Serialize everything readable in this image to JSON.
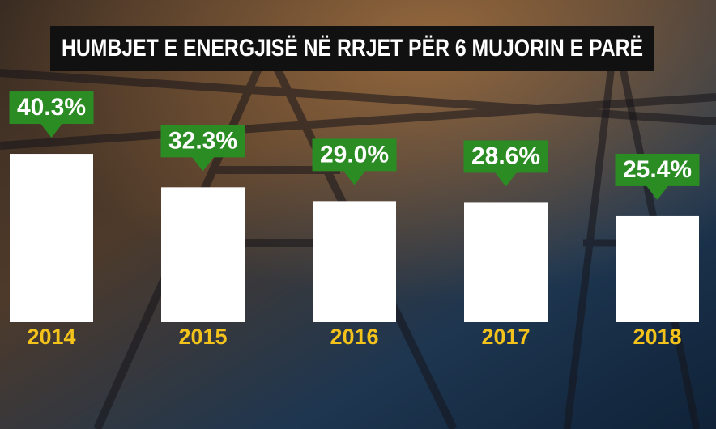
{
  "chart_data": {
    "type": "bar",
    "title": "HUMBJET E ENERGJISË NË RRJET PËR 6 MUJORIN E PARË",
    "categories": [
      "2014",
      "2015",
      "2016",
      "2017",
      "2018"
    ],
    "values": [
      40.3,
      32.3,
      29.0,
      28.6,
      25.4
    ],
    "value_labels": [
      "40.3%",
      "32.3%",
      "29.0%",
      "28.6%",
      "25.4%"
    ],
    "color": "#ffffff",
    "label_color": "#2b8c24",
    "category_color": "#f3c31b"
  }
}
